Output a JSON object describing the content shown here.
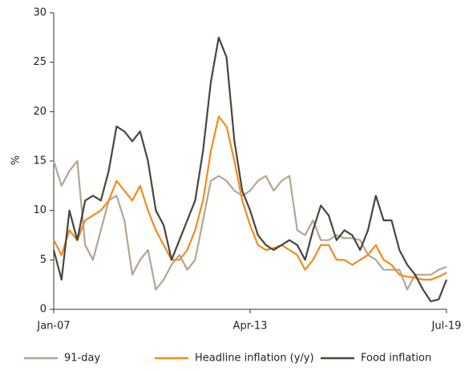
{
  "chart_data": {
    "type": "line",
    "y_label": "%",
    "categories": [
      "Jan-07",
      null,
      null,
      null,
      null,
      null,
      null,
      null,
      null,
      null,
      null,
      null,
      null,
      null,
      null,
      null,
      null,
      null,
      null,
      null,
      null,
      null,
      null,
      null,
      null,
      "Apr-13",
      null,
      null,
      null,
      null,
      null,
      null,
      null,
      null,
      null,
      null,
      null,
      null,
      null,
      null,
      null,
      null,
      null,
      null,
      null,
      null,
      null,
      null,
      null,
      null,
      "Jul-19"
    ],
    "series": [
      {
        "name": "91-day",
        "color": "#b5a592",
        "values": [
          15,
          12.5,
          14,
          15,
          6.5,
          5,
          8,
          11,
          11.5,
          9,
          3.5,
          5,
          6,
          2,
          3,
          4.5,
          5.5,
          4,
          5,
          9,
          13,
          13.5,
          13,
          12,
          11.5,
          12,
          13,
          13.5,
          12,
          13,
          13.5,
          8,
          7.5,
          9,
          7,
          7,
          7.5,
          7.2,
          7.2,
          7,
          5.5,
          5,
          4,
          4,
          4,
          2,
          3.5,
          3.5,
          3.5,
          4,
          4.3
        ]
      },
      {
        "name": "Headline inflation (y/y)",
        "color": "#f28c1c",
        "values": [
          7,
          5.5,
          8,
          7,
          9,
          9.5,
          10,
          11,
          13,
          12,
          11,
          12.5,
          10,
          8,
          6.5,
          5,
          5,
          6,
          8,
          11,
          16,
          19.5,
          18.5,
          15,
          11,
          8.5,
          6.5,
          6,
          6.2,
          6.5,
          6,
          5.5,
          4,
          5,
          6.5,
          6.5,
          5,
          5,
          4.5,
          5,
          5.5,
          6.5,
          5,
          4.5,
          3.5,
          3.3,
          3.2,
          3,
          3,
          3.3,
          3.7
        ]
      },
      {
        "name": "Food inflation",
        "color": "#4a443d",
        "values": [
          6,
          3,
          10,
          7,
          11,
          11.5,
          11,
          14,
          18.5,
          18,
          17,
          18,
          15,
          10,
          8.5,
          5,
          7,
          9,
          11,
          16,
          23,
          27.5,
          25.5,
          17,
          12,
          10,
          7.5,
          6.5,
          6,
          6.5,
          7,
          6.5,
          5,
          8,
          10.5,
          9.5,
          7,
          8,
          7.5,
          6,
          8,
          11.5,
          9,
          9,
          6,
          4.5,
          3.5,
          2,
          0.8,
          1,
          3
        ]
      }
    ],
    "ylim": [
      0,
      30
    ],
    "yticks": [
      0,
      5,
      10,
      15,
      20,
      25,
      30
    ]
  }
}
